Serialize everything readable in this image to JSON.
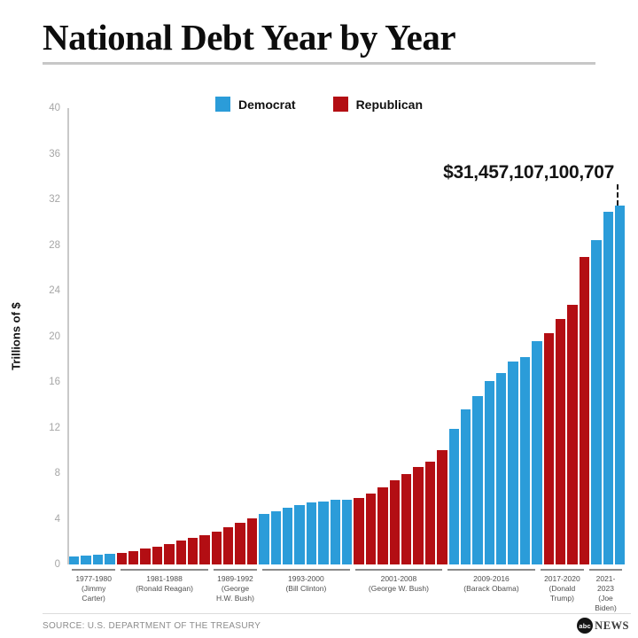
{
  "header": {
    "title": "National Debt Year by Year"
  },
  "footer": {
    "source": "SOURCE: U.S. DEPARTMENT OF THE TREASURY",
    "logo_abc": "abc",
    "logo_news": "NEWS"
  },
  "chart_data": {
    "type": "bar",
    "title": "National Debt Year by Year",
    "ylabel": "Trillions of $",
    "ylim": [
      0,
      40
    ],
    "y_ticks": [
      0,
      4,
      8,
      12,
      16,
      20,
      24,
      28,
      32,
      36,
      40
    ],
    "grid": false,
    "legend_position": "top-center",
    "legend": [
      {
        "label": "Democrat",
        "party": "Democrat"
      },
      {
        "label": "Republican",
        "party": "Republican"
      }
    ],
    "series_colors": {
      "Democrat": "#2b9cd9",
      "Republican": "#b30e13"
    },
    "annotation": {
      "text": "$31,457,107,100,707",
      "points_to_year": 2023
    },
    "bars": [
      {
        "year": 1977,
        "value": 0.7,
        "party": "Democrat"
      },
      {
        "year": 1978,
        "value": 0.77,
        "party": "Democrat"
      },
      {
        "year": 1979,
        "value": 0.83,
        "party": "Democrat"
      },
      {
        "year": 1980,
        "value": 0.91,
        "party": "Democrat"
      },
      {
        "year": 1981,
        "value": 1.0,
        "party": "Republican"
      },
      {
        "year": 1982,
        "value": 1.14,
        "party": "Republican"
      },
      {
        "year": 1983,
        "value": 1.38,
        "party": "Republican"
      },
      {
        "year": 1984,
        "value": 1.57,
        "party": "Republican"
      },
      {
        "year": 1985,
        "value": 1.82,
        "party": "Republican"
      },
      {
        "year": 1986,
        "value": 2.13,
        "party": "Republican"
      },
      {
        "year": 1987,
        "value": 2.35,
        "party": "Republican"
      },
      {
        "year": 1988,
        "value": 2.6,
        "party": "Republican"
      },
      {
        "year": 1989,
        "value": 2.86,
        "party": "Republican"
      },
      {
        "year": 1990,
        "value": 3.23,
        "party": "Republican"
      },
      {
        "year": 1991,
        "value": 3.67,
        "party": "Republican"
      },
      {
        "year": 1992,
        "value": 4.06,
        "party": "Republican"
      },
      {
        "year": 1993,
        "value": 4.41,
        "party": "Democrat"
      },
      {
        "year": 1994,
        "value": 4.69,
        "party": "Democrat"
      },
      {
        "year": 1995,
        "value": 4.97,
        "party": "Democrat"
      },
      {
        "year": 1996,
        "value": 5.22,
        "party": "Democrat"
      },
      {
        "year": 1997,
        "value": 5.41,
        "party": "Democrat"
      },
      {
        "year": 1998,
        "value": 5.53,
        "party": "Democrat"
      },
      {
        "year": 1999,
        "value": 5.66,
        "party": "Democrat"
      },
      {
        "year": 2000,
        "value": 5.67,
        "party": "Democrat"
      },
      {
        "year": 2001,
        "value": 5.81,
        "party": "Republican"
      },
      {
        "year": 2002,
        "value": 6.23,
        "party": "Republican"
      },
      {
        "year": 2003,
        "value": 6.78,
        "party": "Republican"
      },
      {
        "year": 2004,
        "value": 7.38,
        "party": "Republican"
      },
      {
        "year": 2005,
        "value": 7.93,
        "party": "Republican"
      },
      {
        "year": 2006,
        "value": 8.51,
        "party": "Republican"
      },
      {
        "year": 2007,
        "value": 9.01,
        "party": "Republican"
      },
      {
        "year": 2008,
        "value": 10.02,
        "party": "Republican"
      },
      {
        "year": 2009,
        "value": 11.91,
        "party": "Democrat"
      },
      {
        "year": 2010,
        "value": 13.56,
        "party": "Democrat"
      },
      {
        "year": 2011,
        "value": 14.79,
        "party": "Democrat"
      },
      {
        "year": 2012,
        "value": 16.07,
        "party": "Democrat"
      },
      {
        "year": 2013,
        "value": 16.74,
        "party": "Democrat"
      },
      {
        "year": 2014,
        "value": 17.82,
        "party": "Democrat"
      },
      {
        "year": 2015,
        "value": 18.15,
        "party": "Democrat"
      },
      {
        "year": 2016,
        "value": 19.57,
        "party": "Democrat"
      },
      {
        "year": 2017,
        "value": 20.24,
        "party": "Republican"
      },
      {
        "year": 2018,
        "value": 21.52,
        "party": "Republican"
      },
      {
        "year": 2019,
        "value": 22.72,
        "party": "Republican"
      },
      {
        "year": 2020,
        "value": 26.95,
        "party": "Republican"
      },
      {
        "year": 2021,
        "value": 28.43,
        "party": "Democrat"
      },
      {
        "year": 2022,
        "value": 30.93,
        "party": "Democrat"
      },
      {
        "year": 2023,
        "value": 31.46,
        "party": "Democrat"
      }
    ],
    "president_groups": [
      {
        "range": "1977-1980",
        "president": "(Jimmy Carter)",
        "count": 4
      },
      {
        "range": "1981-1988",
        "president": "(Ronald Reagan)",
        "count": 8
      },
      {
        "range": "1989-1992",
        "president": "(George H.W. Bush)",
        "count": 4
      },
      {
        "range": "1993-2000",
        "president": "(Bill Clinton)",
        "count": 8
      },
      {
        "range": "2001-2008",
        "president": "(George W. Bush)",
        "count": 8
      },
      {
        "range": "2009-2016",
        "president": "(Barack Obama)",
        "count": 8
      },
      {
        "range": "2017-2020",
        "president": "(Donald Trump)",
        "count": 4
      },
      {
        "range": "2021-2023",
        "president": "(Joe Biden)",
        "count": 3
      }
    ]
  }
}
